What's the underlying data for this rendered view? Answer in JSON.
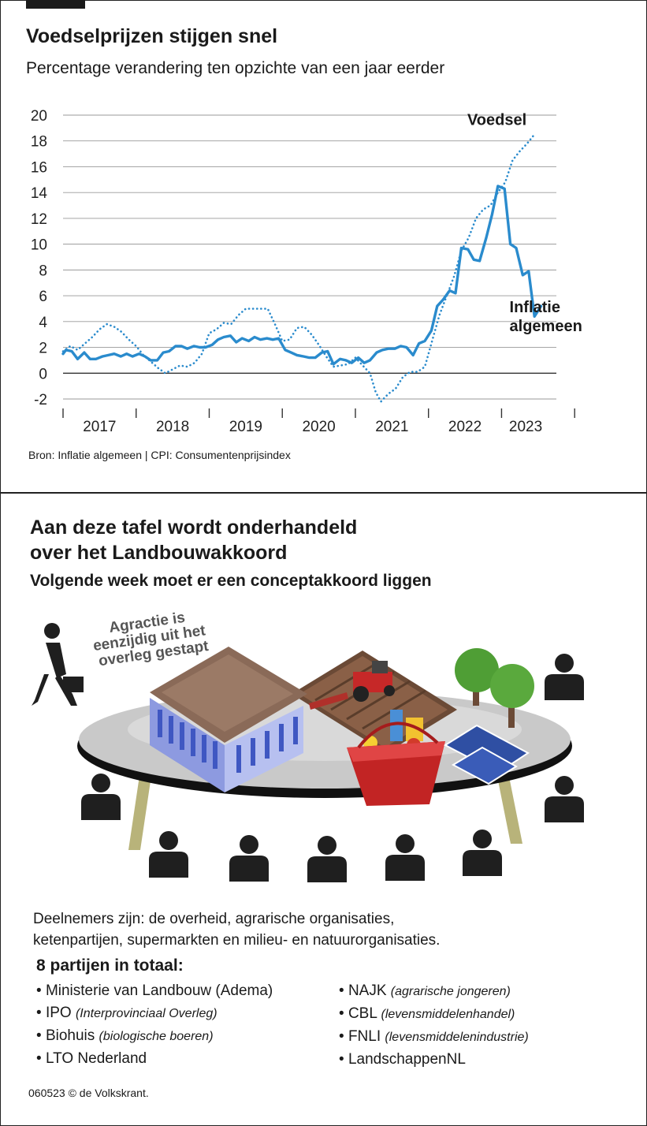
{
  "top_badge": "",
  "chart_section": {
    "title": "Voedselprijzen stijgen snel",
    "subtitle": "Percentage verandering ten opzichte van een jaar eerder",
    "source": "Bron: Inflatie algemeen | CPI: Consumentenprijsindex"
  },
  "chart_data": {
    "type": "line",
    "title": "Voedselprijzen stijgen snel",
    "subtitle": "Percentage verandering ten opzichte van een jaar eerder",
    "xlabel": "",
    "ylabel": "",
    "ylim": [
      -2,
      20
    ],
    "yticks": [
      -2,
      0,
      2,
      4,
      6,
      8,
      10,
      12,
      14,
      16,
      18,
      20
    ],
    "ytick_labels": [
      "-2",
      "0",
      "2",
      "4",
      "6",
      "8",
      "10",
      "12",
      "14",
      "16",
      "18",
      "20"
    ],
    "xlim": [
      2016.0,
      2022.75
    ],
    "year_labels": [
      {
        "label": "2017",
        "at": 2016.5
      },
      {
        "label": "2018",
        "at": 2017.5
      },
      {
        "label": "2019",
        "at": 2018.5
      },
      {
        "label": "2020",
        "at": 2019.5
      },
      {
        "label": "2021",
        "at": 2020.5
      },
      {
        "label": "2022",
        "at": 2021.5
      },
      {
        "label": "2023",
        "at": 2022.33
      }
    ],
    "year_ticks": [
      2016.0,
      2017.0,
      2018.0,
      2019.0,
      2020.0,
      2021.0,
      2022.0,
      2023.0
    ],
    "series": [
      {
        "name": "Inflatie algemeen",
        "label": "Inflatie algemeen",
        "label_lines": [
          "Inflatie",
          "algemeen"
        ],
        "style": "solid",
        "color": "#2a8bcd",
        "points": [
          [
            2016.0,
            1.5
          ],
          [
            2016.04,
            1.8
          ],
          [
            2016.12,
            1.7
          ],
          [
            2016.2,
            1.1
          ],
          [
            2016.29,
            1.6
          ],
          [
            2016.37,
            1.1
          ],
          [
            2016.45,
            1.1
          ],
          [
            2016.54,
            1.3
          ],
          [
            2016.62,
            1.4
          ],
          [
            2016.7,
            1.5
          ],
          [
            2016.79,
            1.3
          ],
          [
            2016.87,
            1.5
          ],
          [
            2016.95,
            1.3
          ],
          [
            2017.04,
            1.5
          ],
          [
            2017.12,
            1.3
          ],
          [
            2017.2,
            1.0
          ],
          [
            2017.29,
            1.0
          ],
          [
            2017.37,
            1.6
          ],
          [
            2017.45,
            1.7
          ],
          [
            2017.54,
            2.1
          ],
          [
            2017.62,
            2.1
          ],
          [
            2017.7,
            1.9
          ],
          [
            2017.79,
            2.1
          ],
          [
            2017.87,
            2.0
          ],
          [
            2017.95,
            2.0
          ],
          [
            2018.04,
            2.2
          ],
          [
            2018.12,
            2.6
          ],
          [
            2018.2,
            2.8
          ],
          [
            2018.29,
            2.9
          ],
          [
            2018.37,
            2.4
          ],
          [
            2018.45,
            2.7
          ],
          [
            2018.54,
            2.5
          ],
          [
            2018.62,
            2.8
          ],
          [
            2018.7,
            2.6
          ],
          [
            2018.79,
            2.7
          ],
          [
            2018.87,
            2.6
          ],
          [
            2018.95,
            2.7
          ],
          [
            2019.04,
            1.8
          ],
          [
            2019.12,
            1.6
          ],
          [
            2019.2,
            1.4
          ],
          [
            2019.29,
            1.3
          ],
          [
            2019.37,
            1.2
          ],
          [
            2019.45,
            1.2
          ],
          [
            2019.54,
            1.6
          ],
          [
            2019.62,
            1.7
          ],
          [
            2019.7,
            0.7
          ],
          [
            2019.79,
            1.1
          ],
          [
            2019.87,
            1.0
          ],
          [
            2019.95,
            0.8
          ],
          [
            2020.04,
            1.2
          ],
          [
            2020.12,
            0.8
          ],
          [
            2020.2,
            1.0
          ],
          [
            2020.29,
            1.6
          ],
          [
            2020.37,
            1.8
          ],
          [
            2020.45,
            1.9
          ],
          [
            2020.54,
            1.9
          ],
          [
            2020.62,
            2.1
          ],
          [
            2020.7,
            2.0
          ],
          [
            2020.79,
            1.4
          ],
          [
            2020.87,
            2.3
          ],
          [
            2020.95,
            2.5
          ],
          [
            2021.04,
            3.3
          ],
          [
            2021.12,
            5.2
          ],
          [
            2021.2,
            5.7
          ],
          [
            2021.29,
            6.4
          ],
          [
            2021.37,
            6.2
          ],
          [
            2021.45,
            9.7
          ],
          [
            2021.54,
            9.6
          ],
          [
            2021.62,
            8.8
          ],
          [
            2021.7,
            8.7
          ],
          [
            2021.79,
            10.5
          ],
          [
            2021.87,
            12.3
          ],
          [
            2021.95,
            14.5
          ],
          [
            2022.04,
            14.3
          ],
          [
            2022.12,
            10.0
          ],
          [
            2022.2,
            9.7
          ],
          [
            2022.29,
            7.6
          ],
          [
            2022.37,
            7.9
          ],
          [
            2022.45,
            4.4
          ],
          [
            2022.54,
            5.2
          ]
        ]
      },
      {
        "name": "Voedsel",
        "label": "Voedsel",
        "label_lines": [
          "Voedsel"
        ],
        "style": "dotted",
        "color": "#2a8bcd",
        "points": [
          [
            2016.0,
            1.7
          ],
          [
            2016.1,
            2.1
          ],
          [
            2016.2,
            1.8
          ],
          [
            2016.3,
            2.3
          ],
          [
            2016.4,
            2.8
          ],
          [
            2016.5,
            3.4
          ],
          [
            2016.6,
            3.8
          ],
          [
            2016.7,
            3.6
          ],
          [
            2016.8,
            3.2
          ],
          [
            2016.9,
            2.6
          ],
          [
            2017.0,
            2.1
          ],
          [
            2017.1,
            1.4
          ],
          [
            2017.2,
            0.9
          ],
          [
            2017.3,
            0.4
          ],
          [
            2017.4,
            0.0
          ],
          [
            2017.5,
            0.3
          ],
          [
            2017.6,
            0.6
          ],
          [
            2017.7,
            0.5
          ],
          [
            2017.8,
            0.8
          ],
          [
            2017.9,
            1.5
          ],
          [
            2018.0,
            3.1
          ],
          [
            2018.1,
            3.4
          ],
          [
            2018.2,
            3.9
          ],
          [
            2018.3,
            3.8
          ],
          [
            2018.4,
            4.5
          ],
          [
            2018.5,
            5.0
          ],
          [
            2018.6,
            5.0
          ],
          [
            2018.7,
            5.0
          ],
          [
            2018.8,
            5.0
          ],
          [
            2018.9,
            3.8
          ],
          [
            2019.0,
            2.5
          ],
          [
            2019.1,
            2.6
          ],
          [
            2019.2,
            3.5
          ],
          [
            2019.3,
            3.6
          ],
          [
            2019.4,
            3.0
          ],
          [
            2019.5,
            2.2
          ],
          [
            2019.6,
            1.3
          ],
          [
            2019.7,
            0.5
          ],
          [
            2019.8,
            0.6
          ],
          [
            2019.9,
            0.7
          ],
          [
            2020.0,
            1.2
          ],
          [
            2020.1,
            0.6
          ],
          [
            2020.2,
            0.0
          ],
          [
            2020.28,
            -1.5
          ],
          [
            2020.35,
            -2.2
          ],
          [
            2020.45,
            -1.6
          ],
          [
            2020.55,
            -1.2
          ],
          [
            2020.65,
            -0.3
          ],
          [
            2020.75,
            0.1
          ],
          [
            2020.85,
            0.1
          ],
          [
            2020.95,
            0.5
          ],
          [
            2021.05,
            2.5
          ],
          [
            2021.15,
            4.5
          ],
          [
            2021.25,
            6.0
          ],
          [
            2021.35,
            7.5
          ],
          [
            2021.45,
            9.5
          ],
          [
            2021.55,
            10.5
          ],
          [
            2021.65,
            12.0
          ],
          [
            2021.75,
            12.7
          ],
          [
            2021.85,
            13.0
          ],
          [
            2021.95,
            14.0
          ],
          [
            2022.05,
            14.8
          ],
          [
            2022.15,
            16.5
          ],
          [
            2022.25,
            17.2
          ],
          [
            2022.35,
            17.8
          ],
          [
            2022.45,
            18.5
          ]
        ]
      }
    ]
  },
  "negotiation_section": {
    "title_lines": [
      "Aan deze tafel wordt onderhandeld",
      "over het Landbouwakkoord"
    ],
    "subtitle": "Volgende week moet er een conceptakkoord liggen",
    "walkout_lines": [
      "Agractie is",
      "eenzijdig uit het",
      "overleg gestapt"
    ],
    "participants_text_lines": [
      "Deelnemers zijn: de overheid, agrarische organisaties,",
      "ketenpartijen, supermarkten en milieu- en natuurorganisaties."
    ],
    "parties_title": "8 partijen in totaal:",
    "parties_left": [
      {
        "name": "Ministerie van Landbouw (Adema)",
        "note": ""
      },
      {
        "name": "IPO",
        "note": "(Interprovinciaal Overleg)"
      },
      {
        "name": "Biohuis",
        "note": "(biologische boeren)"
      },
      {
        "name": "LTO Nederland",
        "note": ""
      }
    ],
    "parties_right": [
      {
        "name": "NAJK",
        "note": "(agrarische jongeren)"
      },
      {
        "name": "CBL",
        "note": "(levensmiddelenhandel)"
      },
      {
        "name": "FNLI",
        "note": "(levensmiddelenindustrie)"
      },
      {
        "name": "LandschappenNL",
        "note": ""
      }
    ]
  },
  "credit": "060523 © de Volkskrant.",
  "colors": {
    "line": "#2a8bcd",
    "table_top": "#bdbdbd",
    "table_legs": "#b8b37a",
    "person": "#1f1f1f",
    "building": "#9aa6e8",
    "roof": "#8a6a58",
    "basket": "#c22424",
    "tree_leaves": "#4f9e35",
    "solar": "#2f4fa3"
  }
}
